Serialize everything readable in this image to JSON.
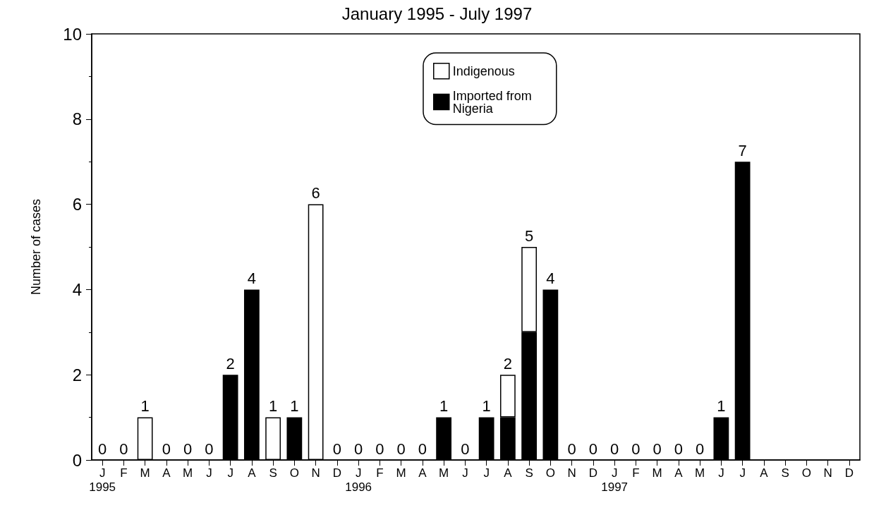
{
  "chart_data": {
    "type": "bar",
    "title": "January 1995 - July 1997",
    "ylabel": "Number of cases",
    "categories": [
      "J\n1995",
      "F",
      "M",
      "A",
      "M",
      "J",
      "J",
      "A",
      "S",
      "O",
      "N",
      "D",
      "J\n1996",
      "F",
      "M",
      "A",
      "M",
      "J",
      "J",
      "A",
      "S",
      "O",
      "N",
      "D",
      "J\n1997",
      "F",
      "M",
      "A",
      "M",
      "J",
      "J",
      "A",
      "S",
      "O",
      "N",
      "D"
    ],
    "stacked": true,
    "series": [
      {
        "name": "Imported from Nigeria",
        "color": "#000000",
        "values": [
          0,
          0,
          0,
          0,
          0,
          0,
          2,
          4,
          0,
          1,
          0,
          0,
          0,
          0,
          0,
          0,
          1,
          0,
          1,
          1,
          3,
          4,
          0,
          0,
          0,
          0,
          0,
          0,
          0,
          1,
          7,
          null,
          null,
          null,
          null,
          null
        ]
      },
      {
        "name": "Indigenous",
        "color": "#ffffff",
        "values": [
          0,
          0,
          1,
          0,
          0,
          0,
          0,
          0,
          1,
          0,
          6,
          0,
          0,
          0,
          0,
          0,
          0,
          0,
          0,
          1,
          2,
          0,
          0,
          0,
          0,
          0,
          0,
          0,
          0,
          0,
          0,
          null,
          null,
          null,
          null,
          null
        ]
      }
    ],
    "totals": [
      "0",
      "0",
      "1",
      "0",
      "0",
      "0",
      "2",
      "4",
      "1",
      "1",
      "6",
      "0",
      "0",
      "0",
      "0",
      "0",
      "1",
      "0",
      "1",
      "2",
      "5",
      "4",
      "0",
      "0",
      "0",
      "0",
      "0",
      "0",
      "0",
      "1",
      "7",
      null,
      null,
      null,
      null,
      null
    ],
    "ylim": [
      0,
      10
    ],
    "yticks": [
      0,
      2,
      4,
      6,
      8,
      10
    ],
    "grid": false,
    "legend": "top"
  }
}
